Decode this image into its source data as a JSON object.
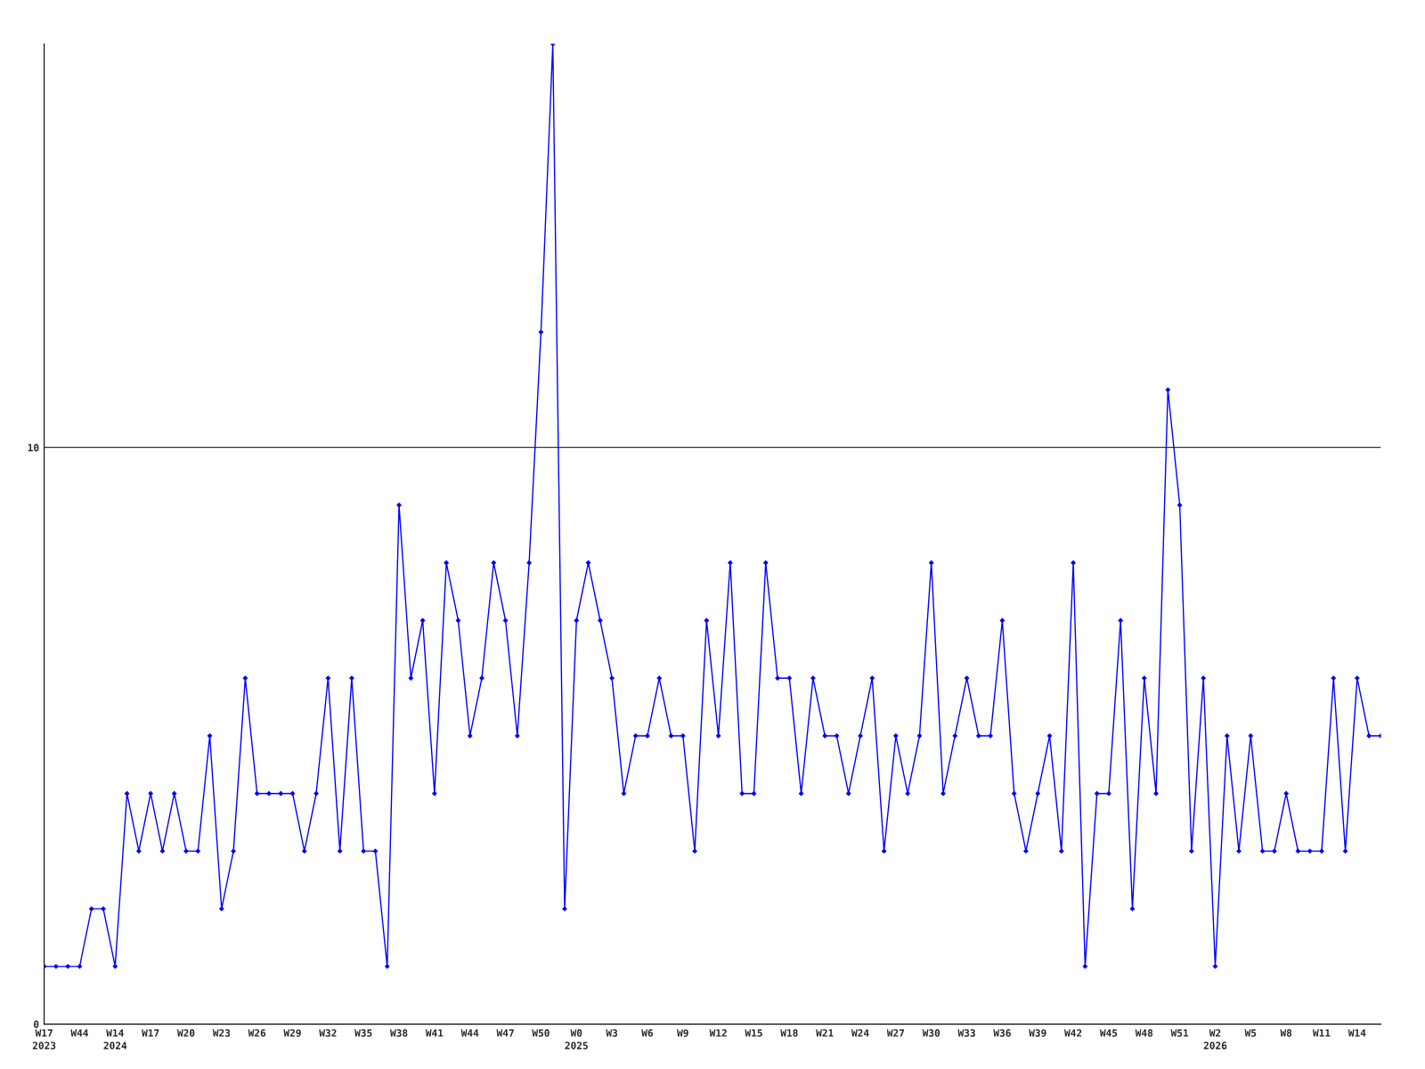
{
  "chart_data": {
    "type": "line",
    "categories": [
      "W17\n2023",
      null,
      null,
      "W44",
      null,
      null,
      "W14\n2024",
      null,
      null,
      "W17",
      null,
      null,
      "W20",
      null,
      null,
      "W23",
      null,
      null,
      "W26",
      null,
      null,
      "W29",
      null,
      null,
      "W32",
      null,
      null,
      "W35",
      null,
      null,
      "W38",
      null,
      null,
      "W41",
      null,
      null,
      "W44",
      null,
      null,
      "W47",
      null,
      null,
      "W50",
      null,
      null,
      "W0\n2025",
      null,
      null,
      "W3",
      null,
      null,
      "W6",
      null,
      null,
      "W9",
      null,
      null,
      "W12",
      null,
      null,
      "W15",
      null,
      null,
      "W18",
      null,
      null,
      "W21",
      null,
      null,
      "W24",
      null,
      null,
      "W27",
      null,
      null,
      "W30",
      null,
      null,
      "W33",
      null,
      null,
      "W36",
      null,
      null,
      "W39",
      null,
      null,
      "W42",
      null,
      null,
      "W45",
      null,
      null,
      "W48",
      null,
      null,
      "W51",
      null,
      null,
      "W2\n2026",
      null,
      null,
      "W5",
      null,
      null,
      "W8",
      null,
      null,
      "W11",
      null,
      null,
      "W14",
      null,
      null
    ],
    "series": [
      {
        "color": "#0000ff",
        "values": [
          1,
          1,
          1,
          1,
          2,
          2,
          1,
          4,
          3,
          4,
          3,
          4,
          3,
          3,
          5,
          2,
          3,
          6,
          4,
          4,
          4,
          4,
          3,
          4,
          6,
          3,
          6,
          3,
          3,
          1,
          9,
          6,
          7,
          4,
          8,
          7,
          5,
          6,
          8,
          7,
          5,
          8,
          12,
          17,
          2,
          7,
          8,
          7,
          6,
          4,
          5,
          5,
          6,
          5,
          5,
          3,
          7,
          5,
          8,
          4,
          4,
          8,
          6,
          6,
          4,
          6,
          5,
          5,
          4,
          5,
          6,
          3,
          5,
          4,
          5,
          8,
          4,
          5,
          6,
          5,
          5,
          7,
          4,
          3,
          4,
          5,
          3,
          8,
          1,
          4,
          4,
          7,
          2,
          6,
          4,
          11,
          9,
          3,
          6,
          1,
          5,
          3,
          5,
          3,
          3,
          4,
          3,
          3,
          3,
          6,
          3,
          6,
          5,
          5
        ]
      }
    ],
    "ylim": [
      0,
      17
    ],
    "yticks": [
      0,
      10
    ],
    "grid": "y",
    "marker": "diamond",
    "line_style": "solid"
  }
}
